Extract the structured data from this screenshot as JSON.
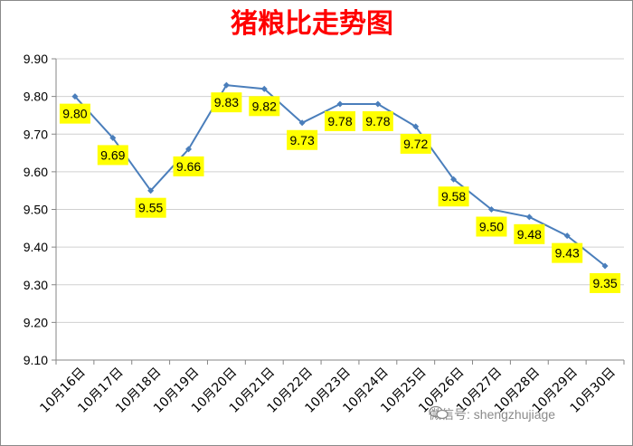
{
  "chart_data": {
    "type": "line",
    "title": "猪粮比走势图",
    "categories": [
      "10月16日",
      "10月17日",
      "10月18日",
      "10月19日",
      "10月20日",
      "10月21日",
      "10月22日",
      "10月23日",
      "10月24日",
      "10月25日",
      "10月26日",
      "10月27日",
      "10月28日",
      "10月29日",
      "10月30日"
    ],
    "values": [
      9.8,
      9.69,
      9.55,
      9.66,
      9.83,
      9.82,
      9.73,
      9.78,
      9.78,
      9.72,
      9.58,
      9.5,
      9.48,
      9.43,
      9.35
    ],
    "data_labels": [
      "9.80",
      "9.69",
      "9.55",
      "9.66",
      "9.83",
      "9.82",
      "9.73",
      "9.78",
      "9.78",
      "9.72",
      "9.58",
      "9.50",
      "9.48",
      "9.43",
      "9.35"
    ],
    "yticks": [
      "9.10",
      "9.20",
      "9.30",
      "9.40",
      "9.50",
      "9.60",
      "9.70",
      "9.80",
      "9.90"
    ],
    "ylim": [
      9.1,
      9.9
    ],
    "grid": true,
    "legend": "none",
    "colors": {
      "title": "#ff0000",
      "line": "#4a7ebb",
      "label_bg": "#ffff00",
      "grid": "#d0d0d0"
    }
  },
  "watermark": {
    "text": "微信号: shengzhujiage"
  }
}
